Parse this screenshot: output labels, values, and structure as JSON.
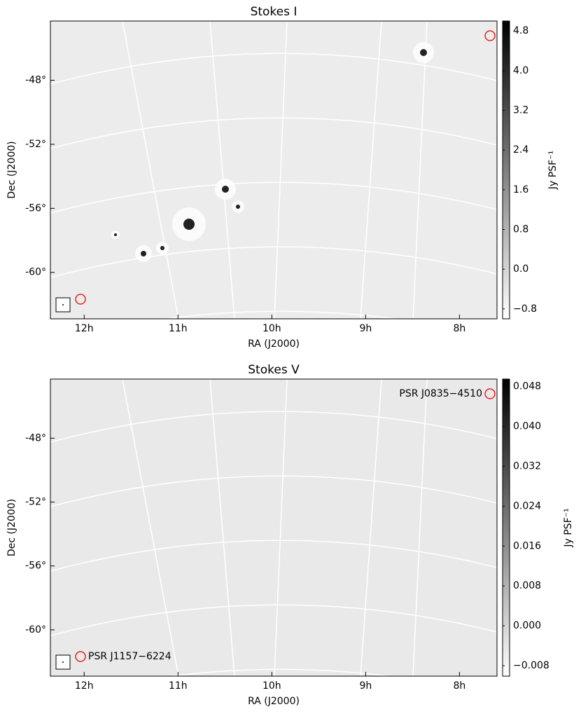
{
  "chart_data": [
    {
      "type": "image",
      "title": "Stokes I",
      "xlabel": "RA (J2000)",
      "ylabel": "Dec (J2000)",
      "xlim": [
        12.36,
        7.6
      ],
      "xticks": [
        {
          "value": 12,
          "label": "12h"
        },
        {
          "value": 11,
          "label": "11h"
        },
        {
          "value": 10,
          "label": "10h"
        },
        {
          "value": 9,
          "label": "9h"
        },
        {
          "value": 8,
          "label": "8h"
        }
      ],
      "ylim": [
        -62.9,
        -44.3
      ],
      "yticks": [
        {
          "value": -48,
          "label": "-48°"
        },
        {
          "value": -52,
          "label": "-52°"
        },
        {
          "value": -56,
          "label": "-56°"
        },
        {
          "value": -60,
          "label": "-60°"
        }
      ],
      "colorbar": {
        "label": "Jy PSF⁻¹",
        "lim": [
          -1.0,
          5.0
        ],
        "ticks": [
          {
            "value": -0.8,
            "label": "−0.8"
          },
          {
            "value": 0,
            "label": "0.0"
          },
          0.8,
          1.6,
          2.4,
          3.2,
          {
            "value": 4,
            "label": "4.0"
          },
          4.8
        ]
      },
      "annotations": []
    },
    {
      "type": "image",
      "title": "Stokes V",
      "xlabel": "RA (J2000)",
      "ylabel": "Dec (J2000)",
      "xlim": [
        12.36,
        7.6
      ],
      "xticks": [
        {
          "value": 12,
          "label": "12h"
        },
        {
          "value": 11,
          "label": "11h"
        },
        {
          "value": 10,
          "label": "10h"
        },
        {
          "value": 9,
          "label": "9h"
        },
        {
          "value": 8,
          "label": "8h"
        }
      ],
      "ylim": [
        -62.9,
        -44.3
      ],
      "yticks": [
        {
          "value": -48,
          "label": "-48°"
        },
        {
          "value": -52,
          "label": "-52°"
        },
        {
          "value": -56,
          "label": "-56°"
        },
        {
          "value": -60,
          "label": "-60°"
        }
      ],
      "colorbar": {
        "label": "Jy PSF⁻¹",
        "lim": [
          -0.0101,
          0.0495
        ],
        "ticks": [
          {
            "value": -0.008,
            "label": "−0.008"
          },
          {
            "value": 0,
            "label": "0.000"
          },
          0.008,
          0.016,
          0.024,
          0.032,
          {
            "value": 0.04,
            "label": "0.040"
          },
          0.048
        ]
      },
      "annotations": [
        "PSR J0835−4510",
        "PSR J1157−6224"
      ]
    }
  ]
}
